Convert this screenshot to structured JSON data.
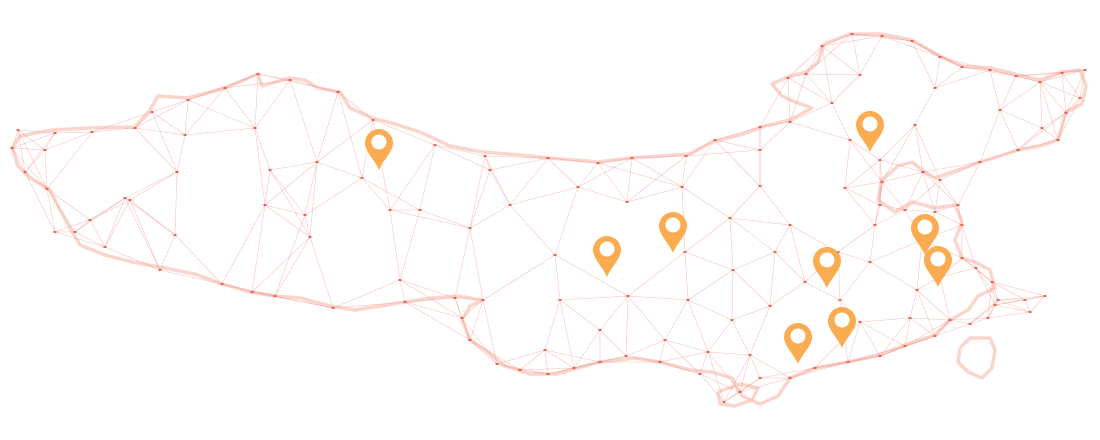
{
  "map": {
    "outline_color": "#f8c7bd",
    "mesh_line_color": "#f08a80",
    "node_color": "#e5533d",
    "pin_color": "#fbab50",
    "pin_inner_color": "#ffffff"
  },
  "pins": [
    {
      "id": "pin-1"
    },
    {
      "id": "pin-2"
    },
    {
      "id": "pin-3"
    },
    {
      "id": "pin-4"
    },
    {
      "id": "pin-5"
    },
    {
      "id": "pin-6"
    },
    {
      "id": "pin-7"
    },
    {
      "id": "pin-8"
    },
    {
      "id": "pin-9"
    }
  ]
}
